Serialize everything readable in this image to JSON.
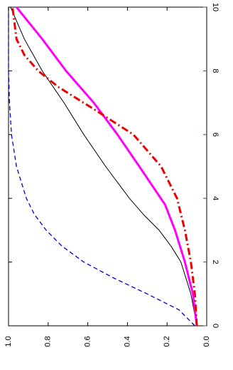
{
  "chart_data": {
    "type": "line",
    "orientation": "rotated-90-ccw",
    "x_axis": {
      "ticks": [
        0,
        2,
        4,
        6,
        8,
        10
      ],
      "tick_labels": [
        "0",
        "2",
        "4",
        "6",
        "8",
        "10"
      ],
      "xlim": [
        0,
        10
      ]
    },
    "y_axis": {
      "ticks": [
        0.0,
        0.2,
        0.4,
        0.6,
        0.8,
        1.0
      ],
      "tick_labels": [
        "0.0",
        "0.2",
        "0.4",
        "0.6",
        "0.8",
        "1.0"
      ],
      "ylim": [
        0.0,
        1.0
      ]
    },
    "grid": false,
    "series": [
      {
        "color": "#0000cc",
        "dash": "dashed",
        "x": [
          0,
          0.5,
          1.0,
          1.5,
          2.0,
          2.5,
          3.0,
          3.5,
          4.0,
          5.0,
          6.0,
          7.0,
          8.0,
          10.0
        ],
        "y": [
          0.06,
          0.14,
          0.3,
          0.47,
          0.62,
          0.73,
          0.81,
          0.87,
          0.91,
          0.96,
          0.985,
          0.995,
          1.0,
          1.0
        ]
      },
      {
        "color": "#000000",
        "dash": "solid",
        "x": [
          0,
          1.0,
          2.0,
          2.5,
          3.0,
          3.5,
          4.0,
          5.0,
          6.0,
          7.0,
          8.0,
          9.0,
          10.0
        ],
        "y": [
          0.05,
          0.08,
          0.13,
          0.18,
          0.24,
          0.32,
          0.39,
          0.51,
          0.62,
          0.72,
          0.83,
          0.92,
          0.99
        ]
      },
      {
        "color": "#ff00ff",
        "dash": "solid",
        "x": [
          0,
          1.0,
          2.0,
          3.0,
          3.8,
          5.0,
          6.0,
          7.0,
          8.0,
          9.0,
          10.0
        ],
        "y": [
          0.05,
          0.07,
          0.11,
          0.16,
          0.21,
          0.34,
          0.45,
          0.57,
          0.71,
          0.83,
          0.96
        ]
      },
      {
        "color": "#ee0000",
        "dash": "dashdot",
        "x": [
          0,
          1.0,
          2.0,
          3.0,
          4.0,
          5.0,
          6.0,
          6.8,
          7.5,
          8.0,
          8.5,
          9.0,
          10.0
        ],
        "y": [
          0.05,
          0.06,
          0.08,
          0.11,
          0.15,
          0.23,
          0.37,
          0.57,
          0.75,
          0.85,
          0.92,
          0.96,
          0.98
        ]
      }
    ]
  }
}
